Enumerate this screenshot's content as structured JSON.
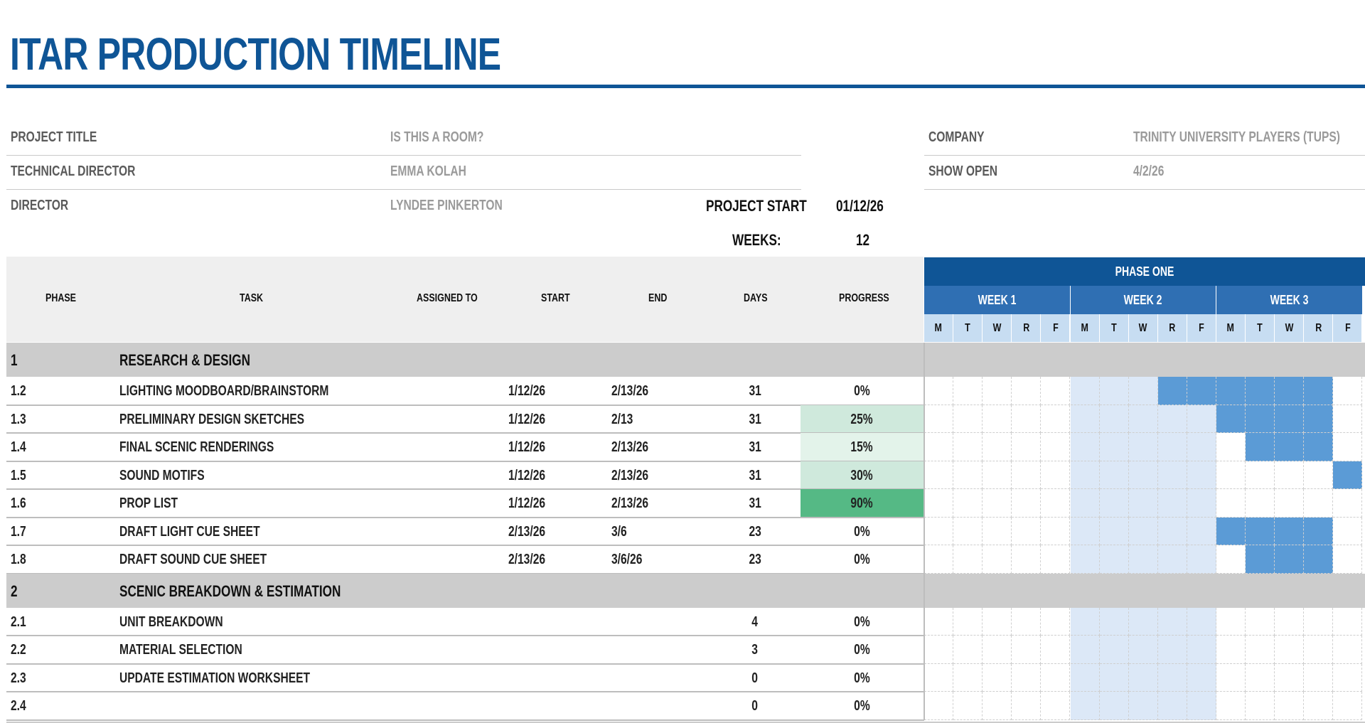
{
  "title": "ITAR PRODUCTION TIMELINE",
  "colors": {
    "brand": "#0f5596",
    "week_header": "#2f6fb3",
    "day_header": "#c7ddf2",
    "gantt_bar": "#5b9bd6",
    "gantt_week_shade": "#dce8f7",
    "section_row": "#cccccc"
  },
  "info": {
    "project_title_label": "PROJECT TITLE",
    "project_title_value": "IS THIS A ROOM?",
    "technical_director_label": "TECHNICAL DIRECTOR",
    "technical_director_value": "EMMA KOLAH",
    "director_label": "DIRECTOR",
    "director_value": "LYNDEE PINKERTON",
    "company_label": "COMPANY",
    "company_value": "TRINITY UNIVERSITY PLAYERS (TUPS)",
    "show_open_label": "SHOW OPEN",
    "show_open_value": "4/2/26",
    "project_start_label": "PROJECT START",
    "project_start_value": "01/12/26",
    "weeks_label": "WEEKS:",
    "weeks_value": "12"
  },
  "table_headers": {
    "phase": "PHASE",
    "task": "TASK",
    "assigned_to": "ASSIGNED TO",
    "start": "START",
    "end": "END",
    "days": "DAYS",
    "progress": "PROGRESS"
  },
  "gantt": {
    "phase_label": "PHASE ONE",
    "weeks": [
      "WEEK 1",
      "WEEK 2",
      "WEEK 3"
    ],
    "days": [
      "M",
      "T",
      "W",
      "R",
      "F",
      "M",
      "T",
      "W",
      "R",
      "F",
      "M",
      "T",
      "W",
      "R",
      "F"
    ]
  },
  "sections": [
    {
      "id": "1",
      "name": "RESEARCH & DESIGN",
      "tasks": [
        {
          "phase": "1.2",
          "task": "LIGHTING MOODBOARD/BRAINSTORM",
          "assigned": "",
          "start": "1/12/26",
          "end": "2/13/26",
          "days": "31",
          "progress": "0%",
          "progress_value": 0,
          "bar_days": [
            8,
            9,
            10,
            11,
            12,
            13
          ]
        },
        {
          "phase": "1.3",
          "task": "PRELIMINARY DESIGN SKETCHES",
          "assigned": "",
          "start": "1/12/26",
          "end": "2/13",
          "days": "31",
          "progress": "25%",
          "progress_value": 25,
          "bar_days": [
            10,
            11,
            12,
            13
          ]
        },
        {
          "phase": "1.4",
          "task": "FINAL SCENIC RENDERINGS",
          "assigned": "",
          "start": "1/12/26",
          "end": "2/13/26",
          "days": "31",
          "progress": "15%",
          "progress_value": 15,
          "bar_days": [
            11,
            12,
            13
          ]
        },
        {
          "phase": "1.5",
          "task": "SOUND MOTIFS",
          "assigned": "",
          "start": "1/12/26",
          "end": "2/13/26",
          "days": "31",
          "progress": "30%",
          "progress_value": 30,
          "bar_days": [
            14
          ]
        },
        {
          "phase": "1.6",
          "task": "PROP LIST",
          "assigned": "",
          "start": "1/12/26",
          "end": "2/13/26",
          "days": "31",
          "progress": "90%",
          "progress_value": 90,
          "bar_days": []
        },
        {
          "phase": "1.7",
          "task": "DRAFT LIGHT CUE SHEET",
          "assigned": "",
          "start": "2/13/26",
          "end": "3/6",
          "days": "23",
          "progress": "0%",
          "progress_value": 0,
          "bar_days": [
            10,
            11,
            12,
            13
          ]
        },
        {
          "phase": "1.8",
          "task": "DRAFT SOUND CUE SHEET",
          "assigned": "",
          "start": "2/13/26",
          "end": "3/6/26",
          "days": "23",
          "progress": "0%",
          "progress_value": 0,
          "bar_days": [
            11,
            12,
            13
          ]
        }
      ]
    },
    {
      "id": "2",
      "name": "SCENIC BREAKDOWN & ESTIMATION",
      "tasks": [
        {
          "phase": "2.1",
          "task": "UNIT BREAKDOWN",
          "assigned": "",
          "start": "",
          "end": "",
          "days": "4",
          "progress": "0%",
          "progress_value": 0,
          "bar_days": []
        },
        {
          "phase": "2.2",
          "task": "MATERIAL SELECTION",
          "assigned": "",
          "start": "",
          "end": "",
          "days": "3",
          "progress": "0%",
          "progress_value": 0,
          "bar_days": []
        },
        {
          "phase": "2.3",
          "task": "UPDATE ESTIMATION WORKSHEET",
          "assigned": "",
          "start": "",
          "end": "",
          "days": "0",
          "progress": "0%",
          "progress_value": 0,
          "bar_days": []
        },
        {
          "phase": "2.4",
          "task": "",
          "assigned": "",
          "start": "",
          "end": "",
          "days": "0",
          "progress": "0%",
          "progress_value": 0,
          "bar_days": []
        }
      ]
    }
  ]
}
